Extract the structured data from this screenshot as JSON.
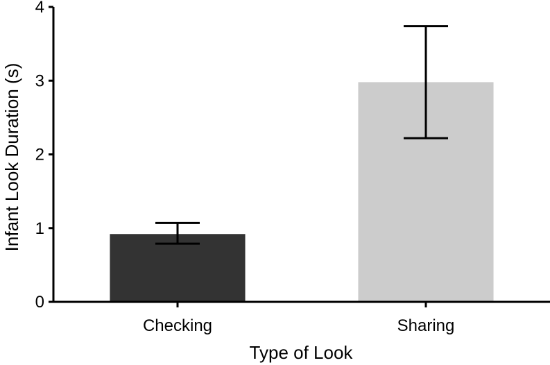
{
  "chart_data": {
    "type": "bar",
    "title": "",
    "xlabel": "Type of Look",
    "ylabel": "Infant Look Duration (s)",
    "categories": [
      "Checking",
      "Sharing"
    ],
    "values": [
      0.92,
      2.98
    ],
    "error_low": [
      0.79,
      2.22
    ],
    "error_high": [
      1.07,
      3.74
    ],
    "bar_colors": [
      "#333333",
      "#cccccc"
    ],
    "ylim": [
      0,
      4
    ],
    "yticks": [
      "0",
      "1",
      "2",
      "3",
      "4"
    ],
    "grid": false,
    "legend": "none"
  }
}
